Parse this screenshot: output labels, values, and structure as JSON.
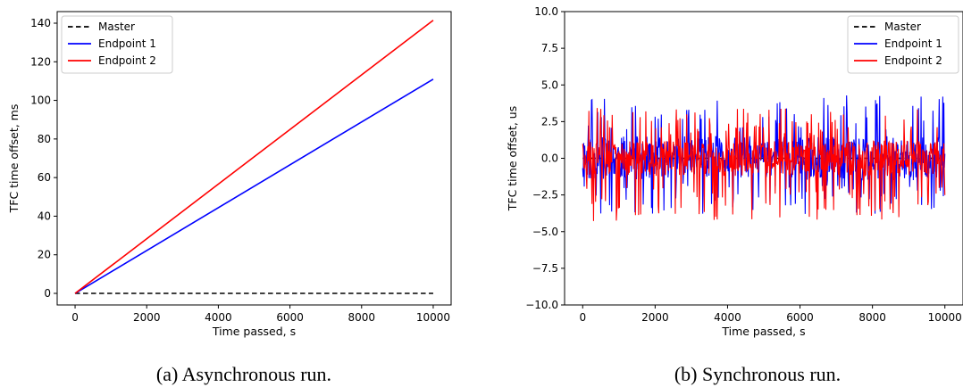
{
  "chart_data": [
    {
      "type": "line",
      "caption": "(a) Asynchronous run.",
      "xlabel": "Time passed, s",
      "ylabel": "TFC time offset, ms",
      "xlim": [
        -500,
        10500
      ],
      "ylim": [
        -6,
        146
      ],
      "xticks": [
        0,
        2000,
        4000,
        6000,
        8000,
        10000
      ],
      "xtick_labels": [
        "0",
        "2000",
        "4000",
        "6000",
        "8000",
        "10000"
      ],
      "yticks": [
        0,
        20,
        40,
        60,
        80,
        100,
        120,
        140
      ],
      "ytick_labels": [
        "0",
        "20",
        "40",
        "60",
        "80",
        "100",
        "120",
        "140"
      ],
      "legend_position": "top-left",
      "grid": false,
      "series": [
        {
          "name": "Master",
          "color": "#000000",
          "dash": true,
          "x": [
            0,
            10000
          ],
          "y": [
            0,
            0
          ]
        },
        {
          "name": "Endpoint 1",
          "color": "#0000ff",
          "dash": false,
          "x": [
            0,
            10000
          ],
          "y": [
            0,
            111
          ]
        },
        {
          "name": "Endpoint 2",
          "color": "#ff0000",
          "dash": false,
          "x": [
            0,
            10000
          ],
          "y": [
            0,
            141.5
          ]
        }
      ]
    },
    {
      "type": "line",
      "caption": "(b) Synchronous run.",
      "xlabel": "Time passed, s",
      "ylabel": "TFC time offset, us",
      "xlim": [
        -500,
        10500
      ],
      "ylim": [
        -10,
        10
      ],
      "xticks": [
        0,
        2000,
        4000,
        6000,
        8000,
        10000
      ],
      "xtick_labels": [
        "0",
        "2000",
        "4000",
        "6000",
        "8000",
        "10000"
      ],
      "yticks": [
        -10,
        -7.5,
        -5,
        -2.5,
        0,
        2.5,
        5,
        7.5,
        10
      ],
      "ytick_labels": [
        "−10.0",
        "−7.5",
        "−5.0",
        "−2.5",
        "0.0",
        "2.5",
        "5.0",
        "7.5",
        "10.0"
      ],
      "legend_position": "top-right",
      "grid": false,
      "series": [
        {
          "name": "Master",
          "color": "#000000",
          "dash": true,
          "x": [
            0,
            10000
          ],
          "y": [
            0,
            0
          ]
        },
        {
          "name": "Endpoint 1",
          "color": "#0000ff",
          "dash": false,
          "x": [
            0,
            10000
          ],
          "y_range": [
            -3.8,
            4.3
          ],
          "y_typical": [
            -1.5,
            1.5
          ],
          "points": 700,
          "seed": 11
        },
        {
          "name": "Endpoint 2",
          "color": "#ff0000",
          "dash": false,
          "x": [
            0,
            10000
          ],
          "y_range": [
            -4.4,
            3.5
          ],
          "y_typical": [
            -1.2,
            1.2
          ],
          "points": 700,
          "seed": 29
        }
      ]
    }
  ]
}
